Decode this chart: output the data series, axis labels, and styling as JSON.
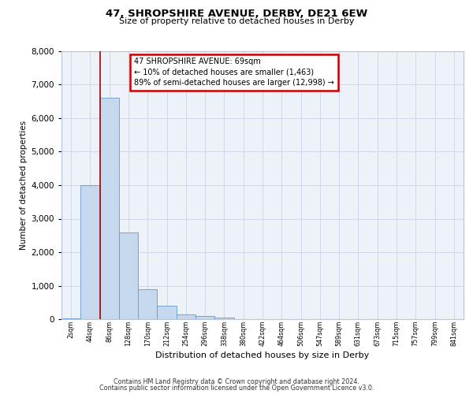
{
  "title1": "47, SHROPSHIRE AVENUE, DERBY, DE21 6EW",
  "title2": "Size of property relative to detached houses in Derby",
  "xlabel": "Distribution of detached houses by size in Derby",
  "ylabel": "Number of detached properties",
  "bin_labels": [
    "2sqm",
    "44sqm",
    "86sqm",
    "128sqm",
    "170sqm",
    "212sqm",
    "254sqm",
    "296sqm",
    "338sqm",
    "380sqm",
    "422sqm",
    "464sqm",
    "506sqm",
    "547sqm",
    "589sqm",
    "631sqm",
    "673sqm",
    "715sqm",
    "757sqm",
    "799sqm",
    "841sqm"
  ],
  "bar_values": [
    25,
    4000,
    6600,
    2600,
    900,
    400,
    130,
    100,
    50,
    10,
    5,
    2,
    0,
    0,
    0,
    0,
    0,
    0,
    0,
    0,
    0
  ],
  "bar_color": "#c5d8ee",
  "bar_edge_color": "#6699cc",
  "grid_color": "#d0d8e8",
  "background_color": "#edf2f9",
  "red_line_color": "#aa0000",
  "red_line_x": 1.5,
  "annotation_line1": "47 SHROPSHIRE AVENUE: 69sqm",
  "annotation_line2": "← 10% of detached houses are smaller (1,463)",
  "annotation_line3": "89% of semi-detached houses are larger (12,998) →",
  "annotation_box_facecolor": "#ffffff",
  "annotation_box_edgecolor": "#cc0000",
  "ylim": [
    0,
    8000
  ],
  "ytick_step": 1000,
  "fig_facecolor": "#ffffff",
  "footer1": "Contains HM Land Registry data © Crown copyright and database right 2024.",
  "footer2": "Contains public sector information licensed under the Open Government Licence v3.0."
}
